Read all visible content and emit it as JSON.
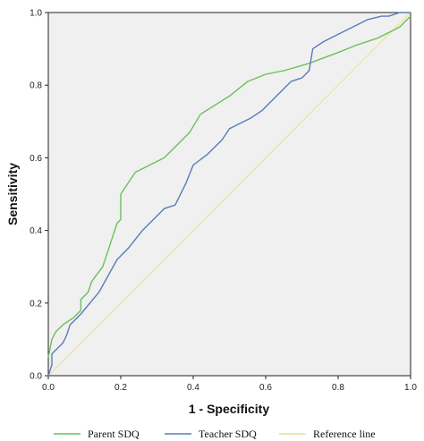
{
  "chart_data": {
    "type": "line",
    "title": "",
    "xlabel": "1 - Specificity",
    "ylabel": "Sensitivity",
    "xlim": [
      0,
      1
    ],
    "ylim": [
      0,
      1
    ],
    "xticks": [
      "0.0",
      "0.2",
      "0.4",
      "0.6",
      "0.8",
      "1.0"
    ],
    "yticks": [
      "0.0",
      "0.2",
      "0.4",
      "0.6",
      "0.8",
      "1.0"
    ],
    "grid": false,
    "legend_position": "bottom",
    "series": [
      {
        "name": "Parent SDQ",
        "color": "#6cc05a",
        "x": [
          0.0,
          0.01,
          0.02,
          0.04,
          0.07,
          0.09,
          0.09,
          0.11,
          0.12,
          0.15,
          0.17,
          0.19,
          0.2,
          0.2,
          0.24,
          0.28,
          0.32,
          0.35,
          0.39,
          0.42,
          0.5,
          0.55,
          0.6,
          0.65,
          0.72,
          0.8,
          0.85,
          0.91,
          0.97,
          1.0
        ],
        "y": [
          0.05,
          0.1,
          0.12,
          0.14,
          0.16,
          0.18,
          0.21,
          0.23,
          0.26,
          0.3,
          0.36,
          0.42,
          0.43,
          0.5,
          0.56,
          0.58,
          0.6,
          0.63,
          0.67,
          0.72,
          0.77,
          0.81,
          0.83,
          0.84,
          0.86,
          0.89,
          0.91,
          0.93,
          0.96,
          0.99
        ]
      },
      {
        "name": "Teacher SDQ",
        "color": "#5b7bb8",
        "x": [
          0.0,
          0.01,
          0.01,
          0.04,
          0.05,
          0.06,
          0.09,
          0.14,
          0.19,
          0.22,
          0.26,
          0.32,
          0.35,
          0.38,
          0.4,
          0.44,
          0.48,
          0.5,
          0.56,
          0.59,
          0.64,
          0.67,
          0.7,
          0.72,
          0.73,
          0.76,
          0.8,
          0.86,
          0.88,
          0.92,
          0.94,
          0.97,
          1.0
        ],
        "y": [
          0.0,
          0.03,
          0.06,
          0.09,
          0.11,
          0.14,
          0.17,
          0.23,
          0.32,
          0.35,
          0.4,
          0.46,
          0.47,
          0.53,
          0.58,
          0.61,
          0.65,
          0.68,
          0.71,
          0.73,
          0.78,
          0.81,
          0.82,
          0.84,
          0.9,
          0.92,
          0.94,
          0.97,
          0.98,
          0.99,
          0.99,
          1.0,
          1.0
        ]
      },
      {
        "name": "Reference line",
        "color": "#e8e38a",
        "x": [
          0,
          1
        ],
        "y": [
          0,
          1
        ]
      }
    ]
  }
}
